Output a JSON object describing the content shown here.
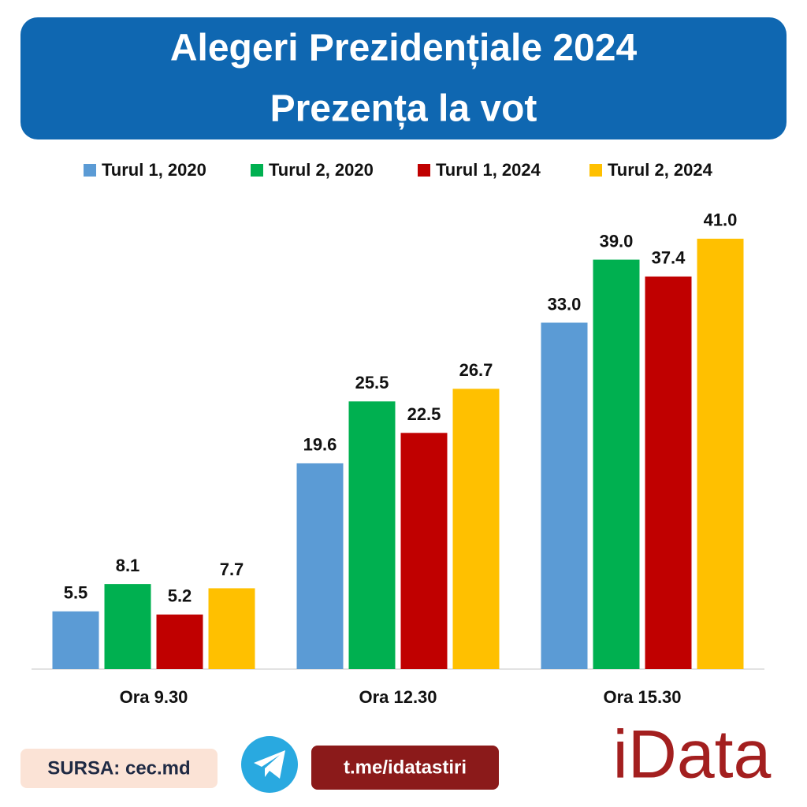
{
  "chart_data": {
    "type": "bar",
    "title": "Alegeri Prezidențiale 2024",
    "subtitle": "Prezența la vot",
    "categories": [
      "Ora 9.30",
      "Ora 12.30",
      "Ora 15.30"
    ],
    "series": [
      {
        "name": "Turul 1, 2020",
        "color": "#5b9bd5",
        "values": [
          5.5,
          19.6,
          33.0
        ],
        "value_labels": [
          "5.5",
          "19.6",
          "33.0"
        ]
      },
      {
        "name": "Turul 2, 2020",
        "color": "#00b050",
        "values": [
          8.1,
          25.5,
          39.0
        ],
        "value_labels": [
          "8.1",
          "25.5",
          "39.0"
        ]
      },
      {
        "name": "Turul 1, 2024",
        "color": "#c00000",
        "values": [
          5.2,
          22.5,
          37.4
        ],
        "value_labels": [
          "5.2",
          "22.5",
          "37.4"
        ]
      },
      {
        "name": "Turul 2, 2024",
        "color": "#ffc000",
        "values": [
          7.7,
          26.7,
          41.0
        ],
        "value_labels": [
          "7.7",
          "26.7",
          "41.0"
        ]
      }
    ],
    "legend": "top"
  },
  "footer": {
    "source": "SURSA: cec.md",
    "link": "t.me/idatastiri",
    "brand": "iData"
  }
}
